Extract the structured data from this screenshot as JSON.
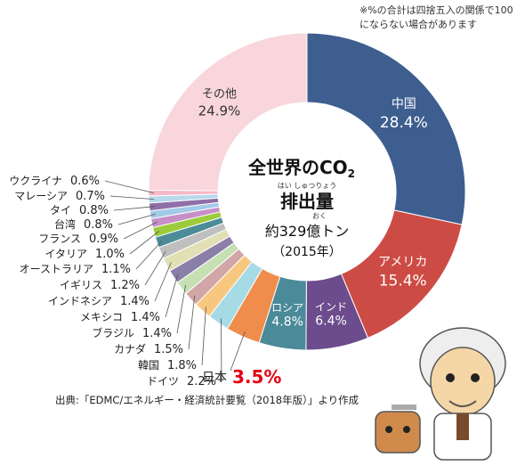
{
  "note": "※%の合計は四捨五入の関係で100にならない場合があります",
  "source": "出典:「EDMC/エネルギー・経済統計要覧（2018年版）」より作成",
  "center": {
    "line1": "全世界のCO",
    "line1_sub": "2",
    "ruby1": "はい しゅつりょう",
    "line2": "排出量",
    "ruby2": "おく",
    "line3": "約329億トン",
    "line4": "（2015年）"
  },
  "chart_data": {
    "type": "pie",
    "title": "全世界のCO2排出量",
    "subtitle": "約329億トン（2015年）",
    "unit": "%",
    "slices": [
      {
        "label": "中国",
        "value": 28.4,
        "display": "28.4%",
        "color": "#3e5e8f"
      },
      {
        "label": "アメリカ",
        "value": 15.4,
        "display": "15.4%",
        "color": "#cc4c45"
      },
      {
        "label": "インド",
        "value": 6.4,
        "display": "6.4%",
        "color": "#6c4c8c"
      },
      {
        "label": "ロシア",
        "value": 4.8,
        "display": "4.8%",
        "color": "#4a8a99"
      },
      {
        "label": "日本",
        "value": 3.5,
        "display": "3.5%",
        "color": "#f08c4c"
      },
      {
        "label": "ドイツ",
        "value": 2.2,
        "display": "2.2%",
        "color": "#a6dbe6"
      },
      {
        "label": "韓国",
        "value": 1.8,
        "display": "1.8%",
        "color": "#f8c77f"
      },
      {
        "label": "カナダ",
        "value": 1.5,
        "display": "1.5%",
        "color": "#d2a6a6"
      },
      {
        "label": "ブラジル",
        "value": 1.4,
        "display": "1.4%",
        "color": "#c6e0b4"
      },
      {
        "label": "メキシコ",
        "value": 1.4,
        "display": "1.4%",
        "color": "#8a7fa8"
      },
      {
        "label": "インドネシア",
        "value": 1.4,
        "display": "1.4%",
        "color": "#e0e0b4"
      },
      {
        "label": "イギリス",
        "value": 1.2,
        "display": "1.2%",
        "color": "#bfbfbf"
      },
      {
        "label": "オーストラリア",
        "value": 1.1,
        "display": "1.1%",
        "color": "#4c8c99"
      },
      {
        "label": "イタリア",
        "value": 1.0,
        "display": "1.0%",
        "color": "#9ccc3c"
      },
      {
        "label": "フランス",
        "value": 0.9,
        "display": "0.9%",
        "color": "#c78fc7"
      },
      {
        "label": "台湾",
        "value": 0.8,
        "display": "0.8%",
        "color": "#a3c9e8"
      },
      {
        "label": "タイ",
        "value": 0.8,
        "display": "0.8%",
        "color": "#8f6fa8"
      },
      {
        "label": "マレーシア",
        "value": 0.7,
        "display": "0.7%",
        "color": "#b8d8ec"
      },
      {
        "label": "ウクライナ",
        "value": 0.6,
        "display": "0.6%",
        "color": "#f7b8c8"
      },
      {
        "label": "その他",
        "value": 24.9,
        "display": "24.9%",
        "color": "#f8d6dc"
      }
    ]
  }
}
